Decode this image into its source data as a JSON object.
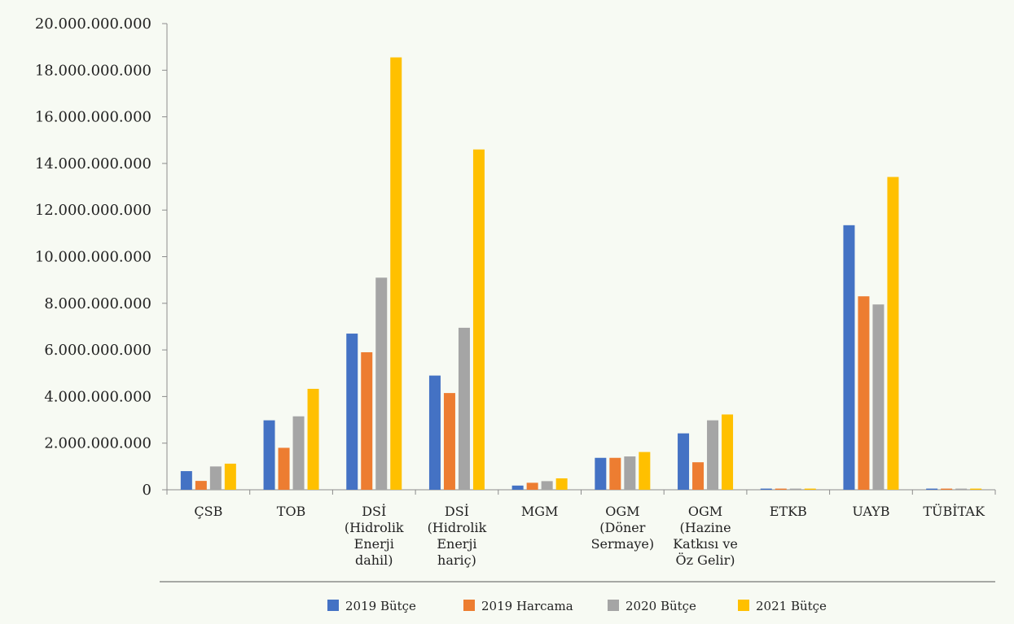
{
  "chart_data": {
    "type": "bar",
    "categories": [
      [
        "ÇSB"
      ],
      [
        "TOB"
      ],
      [
        "DSİ",
        "(Hidrolik",
        "Enerji",
        "dahil)"
      ],
      [
        "DSİ",
        "(Hidrolik",
        "Enerji",
        "hariç)"
      ],
      [
        "MGM"
      ],
      [
        "OGM",
        "(Döner",
        "Sermaye)"
      ],
      [
        "OGM",
        "(Hazine",
        "Katkısı ve",
        "Öz Gelir)"
      ],
      [
        "ETKB"
      ],
      [
        "UAYB"
      ],
      [
        "TÜBİTAK"
      ]
    ],
    "series": [
      {
        "name": "2019 Bütçe",
        "color": "#4472c4",
        "values": [
          800000000,
          2980000000,
          6700000000,
          4900000000,
          180000000,
          1370000000,
          2420000000,
          50000000,
          11350000000,
          50000000
        ]
      },
      {
        "name": "2019 Harcama",
        "color": "#ed7d31",
        "values": [
          380000000,
          1800000000,
          5900000000,
          4150000000,
          300000000,
          1370000000,
          1180000000,
          50000000,
          8300000000,
          50000000
        ]
      },
      {
        "name": "2020 Bütçe",
        "color": "#a5a5a5",
        "values": [
          1000000000,
          3150000000,
          9100000000,
          6950000000,
          370000000,
          1430000000,
          2980000000,
          50000000,
          7950000000,
          50000000
        ]
      },
      {
        "name": "2021 Bütçe",
        "color": "#ffc000",
        "values": [
          1120000000,
          4330000000,
          18550000000,
          14600000000,
          490000000,
          1620000000,
          3230000000,
          50000000,
          13420000000,
          50000000
        ]
      }
    ],
    "ylim": [
      0,
      20000000000
    ],
    "yticks": [
      {
        "value": 0,
        "label": "0"
      },
      {
        "value": 2000000000,
        "label": "2.000.000.000"
      },
      {
        "value": 4000000000,
        "label": "4.000.000.000"
      },
      {
        "value": 6000000000,
        "label": "6.000.000.000"
      },
      {
        "value": 8000000000,
        "label": "8.000.000.000"
      },
      {
        "value": 10000000000,
        "label": "10.000.000.000"
      },
      {
        "value": 12000000000,
        "label": "12.000.000.000"
      },
      {
        "value": 14000000000,
        "label": "14.000.000.000"
      },
      {
        "value": 16000000000,
        "label": "16.000.000.000"
      },
      {
        "value": 18000000000,
        "label": "18.000.000.000"
      },
      {
        "value": 20000000000,
        "label": "20.000.000.000"
      }
    ],
    "title": "",
    "xlabel": "",
    "ylabel": "",
    "grid": false,
    "legend_position": "bottom"
  }
}
